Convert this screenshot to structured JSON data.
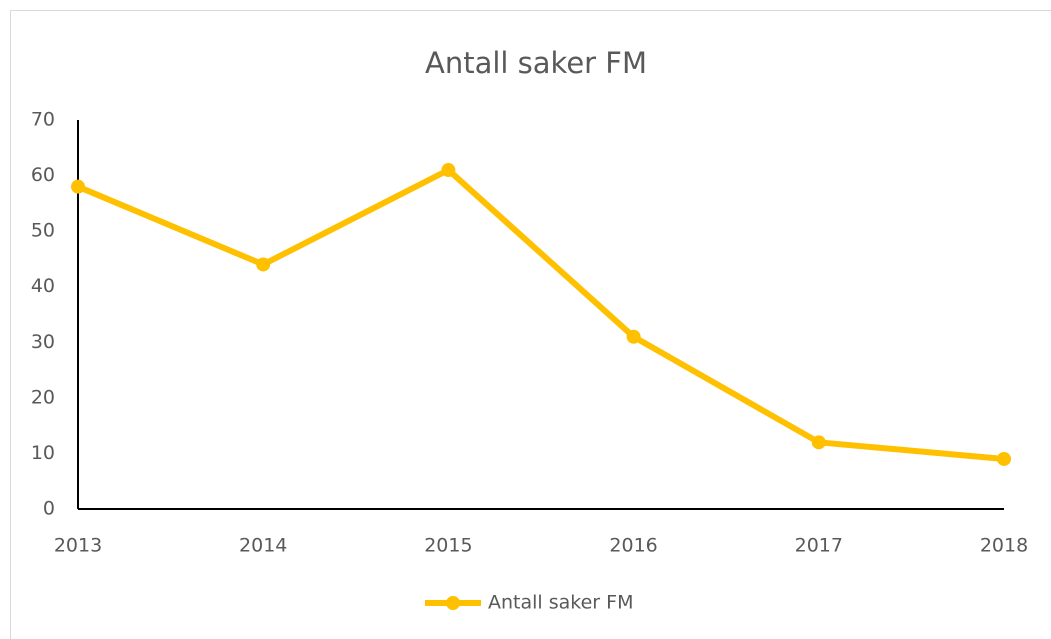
{
  "chart_data": {
    "type": "line",
    "title": "Antall saker FM",
    "categories": [
      "2013",
      "2014",
      "2015",
      "2016",
      "2017",
      "2018"
    ],
    "series": [
      {
        "name": "Antall saker FM",
        "color": "#ffc000",
        "values": [
          58,
          44,
          61,
          31,
          12,
          9
        ]
      }
    ],
    "ylim": [
      0,
      70
    ],
    "yticks": [
      0,
      10,
      20,
      30,
      40,
      50,
      60,
      70
    ],
    "grid": false,
    "legend": "bottom"
  }
}
